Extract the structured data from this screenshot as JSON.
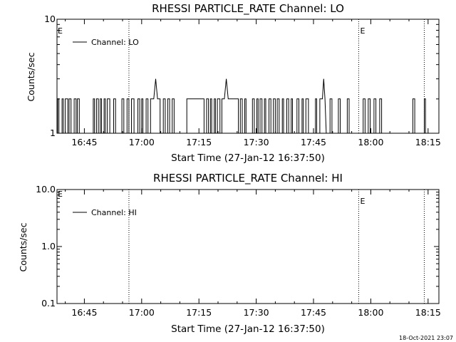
{
  "footer": {
    "timestamp": "18-Oct-2021 23:07"
  },
  "chart_data": [
    {
      "type": "line",
      "title": "RHESSI PARTICLE_RATE Channel: LO",
      "xlabel": "Start Time (27-Jan-12 16:37:50)",
      "ylabel": "Counts/sec",
      "x_ticks": [
        "16:45",
        "17:00",
        "17:15",
        "17:30",
        "17:45",
        "18:00",
        "18:15"
      ],
      "y_scale": "log",
      "ylim": [
        1,
        10
      ],
      "y_ticks": [
        "1",
        "10"
      ],
      "xlim": [
        "16:37:50",
        "18:17:50"
      ],
      "legend": {
        "label": "Channel: LO",
        "position": "top-left"
      },
      "event_lines": [
        {
          "time": "16:56:40",
          "label": ""
        },
        {
          "time": "17:56:50",
          "label": "E"
        },
        {
          "time": "18:14:00",
          "label": ""
        }
      ],
      "start_marker": "E",
      "series": [
        {
          "name": "Channel: LO",
          "values": [
            [
              "16:38:00",
              1
            ],
            [
              "16:38:00",
              2
            ],
            [
              "16:38:20",
              2
            ],
            [
              "16:38:20",
              1
            ],
            [
              "16:39:10",
              1
            ],
            [
              "16:39:10",
              2
            ],
            [
              "16:39:30",
              2
            ],
            [
              "16:39:30",
              1
            ],
            [
              "16:40:00",
              1
            ],
            [
              "16:40:00",
              2
            ],
            [
              "16:40:40",
              2
            ],
            [
              "16:40:40",
              1
            ],
            [
              "16:41:00",
              1
            ],
            [
              "16:41:00",
              2
            ],
            [
              "16:41:30",
              2
            ],
            [
              "16:41:30",
              1
            ],
            [
              "16:42:20",
              1
            ],
            [
              "16:42:20",
              2
            ],
            [
              "16:42:50",
              2
            ],
            [
              "16:42:50",
              1
            ],
            [
              "16:43:10",
              1
            ],
            [
              "16:43:10",
              2
            ],
            [
              "16:43:40",
              2
            ],
            [
              "16:43:40",
              1
            ],
            [
              "16:47:20",
              1
            ],
            [
              "16:47:20",
              2
            ],
            [
              "16:47:40",
              2
            ],
            [
              "16:47:40",
              1
            ],
            [
              "16:48:10",
              1
            ],
            [
              "16:48:10",
              2
            ],
            [
              "16:48:40",
              2
            ],
            [
              "16:48:40",
              1
            ],
            [
              "16:49:10",
              1
            ],
            [
              "16:49:10",
              2
            ],
            [
              "16:49:30",
              2
            ],
            [
              "16:49:30",
              1
            ],
            [
              "16:50:10",
              1
            ],
            [
              "16:50:10",
              2
            ],
            [
              "16:50:30",
              2
            ],
            [
              "16:50:30",
              1
            ],
            [
              "16:51:00",
              1
            ],
            [
              "16:51:00",
              2
            ],
            [
              "16:51:40",
              2
            ],
            [
              "16:51:40",
              1
            ],
            [
              "16:52:40",
              1
            ],
            [
              "16:52:40",
              2
            ],
            [
              "16:53:10",
              2
            ],
            [
              "16:53:10",
              1
            ],
            [
              "16:54:50",
              1
            ],
            [
              "16:54:50",
              2
            ],
            [
              "16:55:20",
              2
            ],
            [
              "16:55:20",
              1
            ],
            [
              "16:56:10",
              1
            ],
            [
              "16:56:10",
              2
            ],
            [
              "16:56:40",
              2
            ],
            [
              "16:56:40",
              1
            ],
            [
              "16:57:20",
              1
            ],
            [
              "16:57:20",
              2
            ],
            [
              "16:58:00",
              2
            ],
            [
              "16:58:00",
              1
            ],
            [
              "16:59:00",
              1
            ],
            [
              "16:59:00",
              2
            ],
            [
              "16:59:30",
              2
            ],
            [
              "16:59:30",
              1
            ],
            [
              "17:00:00",
              1
            ],
            [
              "17:00:00",
              2
            ],
            [
              "17:00:20",
              2
            ],
            [
              "17:00:20",
              1
            ],
            [
              "17:01:10",
              1
            ],
            [
              "17:01:10",
              2
            ],
            [
              "17:01:40",
              2
            ],
            [
              "17:01:40",
              1
            ],
            [
              "17:02:20",
              1
            ],
            [
              "17:02:20",
              2
            ],
            [
              "17:03:10",
              2
            ],
            [
              "17:03:40",
              3
            ],
            [
              "17:04:10",
              2
            ],
            [
              "17:04:50",
              2
            ],
            [
              "17:04:50",
              1
            ],
            [
              "17:05:40",
              1
            ],
            [
              "17:05:40",
              2
            ],
            [
              "17:06:10",
              2
            ],
            [
              "17:06:10",
              1
            ],
            [
              "17:06:50",
              1
            ],
            [
              "17:06:50",
              2
            ],
            [
              "17:07:20",
              2
            ],
            [
              "17:07:20",
              1
            ],
            [
              "17:08:00",
              1
            ],
            [
              "17:08:00",
              2
            ],
            [
              "17:08:30",
              2
            ],
            [
              "17:08:30",
              1
            ],
            [
              "17:11:50",
              1
            ],
            [
              "17:11:50",
              2
            ],
            [
              "17:16:20",
              2
            ],
            [
              "17:16:20",
              1
            ],
            [
              "17:17:00",
              1
            ],
            [
              "17:17:00",
              2
            ],
            [
              "17:17:30",
              2
            ],
            [
              "17:17:30",
              1
            ],
            [
              "17:18:00",
              1
            ],
            [
              "17:18:00",
              2
            ],
            [
              "17:18:20",
              2
            ],
            [
              "17:18:20",
              1
            ],
            [
              "17:19:00",
              1
            ],
            [
              "17:19:00",
              2
            ],
            [
              "17:19:20",
              2
            ],
            [
              "17:19:20",
              1
            ],
            [
              "17:19:50",
              1
            ],
            [
              "17:19:50",
              2
            ],
            [
              "17:20:30",
              2
            ],
            [
              "17:20:30",
              1
            ],
            [
              "17:21:00",
              1
            ],
            [
              "17:21:00",
              2
            ],
            [
              "17:21:40",
              2
            ],
            [
              "17:22:10",
              3
            ],
            [
              "17:22:40",
              2
            ],
            [
              "17:25:20",
              2
            ],
            [
              "17:25:20",
              1
            ],
            [
              "17:25:50",
              1
            ],
            [
              "17:25:50",
              2
            ],
            [
              "17:26:20",
              2
            ],
            [
              "17:26:20",
              1
            ],
            [
              "17:27:00",
              1
            ],
            [
              "17:27:00",
              2
            ],
            [
              "17:27:20",
              2
            ],
            [
              "17:27:20",
              1
            ],
            [
              "17:29:00",
              1
            ],
            [
              "17:29:00",
              2
            ],
            [
              "17:29:30",
              2
            ],
            [
              "17:29:30",
              1
            ],
            [
              "17:30:10",
              1
            ],
            [
              "17:30:10",
              2
            ],
            [
              "17:30:30",
              2
            ],
            [
              "17:30:30",
              1
            ],
            [
              "17:31:00",
              1
            ],
            [
              "17:31:00",
              2
            ],
            [
              "17:31:30",
              2
            ],
            [
              "17:31:30",
              1
            ],
            [
              "17:32:10",
              1
            ],
            [
              "17:32:10",
              2
            ],
            [
              "17:32:30",
              2
            ],
            [
              "17:32:30",
              1
            ],
            [
              "17:33:20",
              1
            ],
            [
              "17:33:20",
              2
            ],
            [
              "17:33:50",
              2
            ],
            [
              "17:33:50",
              1
            ],
            [
              "17:34:30",
              1
            ],
            [
              "17:34:30",
              2
            ],
            [
              "17:35:00",
              2
            ],
            [
              "17:35:00",
              1
            ],
            [
              "17:35:30",
              1
            ],
            [
              "17:35:30",
              2
            ],
            [
              "17:36:00",
              2
            ],
            [
              "17:36:00",
              1
            ],
            [
              "17:36:50",
              1
            ],
            [
              "17:36:50",
              2
            ],
            [
              "17:37:10",
              2
            ],
            [
              "17:37:10",
              1
            ],
            [
              "17:38:00",
              1
            ],
            [
              "17:38:00",
              2
            ],
            [
              "17:38:30",
              2
            ],
            [
              "17:38:30",
              1
            ],
            [
              "17:39:10",
              1
            ],
            [
              "17:39:10",
              2
            ],
            [
              "17:39:30",
              2
            ],
            [
              "17:39:30",
              1
            ],
            [
              "17:40:40",
              1
            ],
            [
              "17:40:40",
              2
            ],
            [
              "17:41:10",
              2
            ],
            [
              "17:41:10",
              1
            ],
            [
              "17:42:00",
              1
            ],
            [
              "17:42:00",
              2
            ],
            [
              "17:42:20",
              2
            ],
            [
              "17:42:20",
              1
            ],
            [
              "17:43:00",
              1
            ],
            [
              "17:43:00",
              2
            ],
            [
              "17:43:40",
              2
            ],
            [
              "17:43:40",
              1
            ],
            [
              "17:45:30",
              1
            ],
            [
              "17:45:30",
              2
            ],
            [
              "17:45:50",
              2
            ],
            [
              "17:45:50",
              1
            ],
            [
              "17:46:40",
              1
            ],
            [
              "17:46:40",
              2
            ],
            [
              "17:47:20",
              2
            ],
            [
              "17:47:40",
              3
            ],
            [
              "17:48:00",
              2
            ],
            [
              "17:48:20",
              1
            ],
            [
              "17:49:20",
              1
            ],
            [
              "17:49:20",
              2
            ],
            [
              "17:49:50",
              2
            ],
            [
              "17:49:50",
              1
            ],
            [
              "17:51:30",
              1
            ],
            [
              "17:51:30",
              2
            ],
            [
              "17:52:00",
              2
            ],
            [
              "17:52:00",
              1
            ],
            [
              "17:53:50",
              1
            ],
            [
              "17:53:50",
              2
            ],
            [
              "17:54:20",
              2
            ],
            [
              "17:54:20",
              1
            ],
            [
              "17:58:00",
              1
            ],
            [
              "17:58:00",
              2
            ],
            [
              "17:58:30",
              2
            ],
            [
              "17:58:30",
              1
            ],
            [
              "17:59:20",
              1
            ],
            [
              "17:59:20",
              2
            ],
            [
              "17:59:50",
              2
            ],
            [
              "17:59:50",
              1
            ],
            [
              "18:00:50",
              1
            ],
            [
              "18:00:50",
              2
            ],
            [
              "18:01:20",
              2
            ],
            [
              "18:01:20",
              1
            ],
            [
              "18:02:20",
              1
            ],
            [
              "18:02:20",
              2
            ],
            [
              "18:02:50",
              2
            ],
            [
              "18:02:50",
              1
            ],
            [
              "18:11:00",
              1
            ],
            [
              "18:11:00",
              2
            ],
            [
              "18:11:30",
              2
            ],
            [
              "18:11:30",
              1
            ],
            [
              "18:14:00",
              1
            ],
            [
              "18:14:00",
              2
            ],
            [
              "18:14:20",
              2
            ],
            [
              "18:14:20",
              1
            ]
          ]
        }
      ]
    },
    {
      "type": "line",
      "title": "RHESSI PARTICLE_RATE Channel: HI",
      "xlabel": "Start Time (27-Jan-12 16:37:50)",
      "ylabel": "Counts/sec",
      "x_ticks": [
        "16:45",
        "17:00",
        "17:15",
        "17:30",
        "17:45",
        "18:00",
        "18:15"
      ],
      "y_scale": "log",
      "ylim": [
        0.1,
        10
      ],
      "y_ticks": [
        "0.1",
        "1.0",
        "10.0"
      ],
      "xlim": [
        "16:37:50",
        "18:17:50"
      ],
      "legend": {
        "label": "Channel: HI",
        "position": "top-left"
      },
      "event_lines": [
        {
          "time": "16:56:40",
          "label": ""
        },
        {
          "time": "17:56:50",
          "label": "E"
        },
        {
          "time": "18:14:00",
          "label": ""
        }
      ],
      "start_marker": "E",
      "series": [
        {
          "name": "Channel: HI",
          "values": []
        }
      ]
    }
  ]
}
